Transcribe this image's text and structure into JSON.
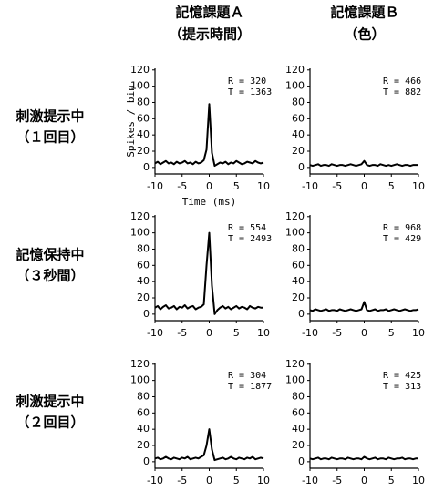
{
  "headers": [
    "記憶課題Ａ",
    "（提示時間）",
    "記憶課題Ｂ",
    "（色）"
  ],
  "row_labels": [
    [
      "刺激提示中",
      "（１回目）"
    ],
    [
      "記憶保持中",
      "（３秒間）"
    ],
    [
      "刺激提示中",
      "（２回目）"
    ]
  ],
  "chart_data": [
    {
      "type": "line",
      "y_label": "Spikes / bin",
      "x_label": "Time (ms)",
      "annotations": [
        "R = 320",
        "T = 1363"
      ],
      "xlim": [
        -10,
        10
      ],
      "ylim": [
        -8,
        122
      ],
      "xticks": [
        -10,
        -5,
        0,
        5,
        10
      ],
      "yticks": [
        0,
        20,
        40,
        60,
        80,
        100,
        120
      ],
      "color": "#000000",
      "x": [
        -10,
        -9.5,
        -9,
        -8.5,
        -8,
        -7.5,
        -7,
        -6.5,
        -6,
        -5.5,
        -5,
        -4.5,
        -4,
        -3.5,
        -3,
        -2.5,
        -2,
        -1.5,
        -1,
        -0.5,
        0,
        0.5,
        1,
        1.5,
        2,
        2.5,
        3,
        3.5,
        4,
        4.5,
        5,
        5.5,
        6,
        6.5,
        7,
        7.5,
        8,
        8.5,
        9,
        9.5,
        10
      ],
      "values": [
        5,
        7,
        4,
        6,
        8,
        5,
        6,
        4,
        7,
        5,
        6,
        8,
        5,
        6,
        4,
        7,
        5,
        6,
        9,
        22,
        78,
        18,
        2,
        4,
        6,
        5,
        7,
        4,
        6,
        5,
        8,
        6,
        4,
        5,
        7,
        6,
        5,
        8,
        6,
        5,
        6
      ]
    },
    {
      "type": "line",
      "annotations": [
        "R = 466",
        "T = 882"
      ],
      "xlim": [
        -10,
        10
      ],
      "ylim": [
        -8,
        122
      ],
      "xticks": [
        -10,
        -5,
        0,
        5,
        10
      ],
      "yticks": [
        0,
        20,
        40,
        60,
        80,
        100,
        120
      ],
      "color": "#000000",
      "x": [
        -10,
        -9.5,
        -9,
        -8.5,
        -8,
        -7.5,
        -7,
        -6.5,
        -6,
        -5.5,
        -5,
        -4.5,
        -4,
        -3.5,
        -3,
        -2.5,
        -2,
        -1.5,
        -1,
        -0.5,
        0,
        0.5,
        1,
        1.5,
        2,
        2.5,
        3,
        3.5,
        4,
        4.5,
        5,
        5.5,
        6,
        6.5,
        7,
        7.5,
        8,
        8.5,
        9,
        9.5,
        10
      ],
      "values": [
        3,
        2,
        3,
        4,
        2,
        3,
        3,
        2,
        4,
        3,
        2,
        3,
        3,
        2,
        3,
        4,
        3,
        2,
        3,
        4,
        8,
        3,
        2,
        3,
        3,
        2,
        4,
        3,
        2,
        3,
        2,
        3,
        4,
        3,
        2,
        3,
        3,
        2,
        3,
        3,
        3
      ]
    },
    {
      "type": "line",
      "annotations": [
        "R = 554",
        "T = 2493"
      ],
      "xlim": [
        -10,
        10
      ],
      "ylim": [
        -8,
        122
      ],
      "xticks": [
        -10,
        -5,
        0,
        5,
        10
      ],
      "yticks": [
        0,
        20,
        40,
        60,
        80,
        100,
        120
      ],
      "color": "#000000",
      "x": [
        -10,
        -9.5,
        -9,
        -8.5,
        -8,
        -7.5,
        -7,
        -6.5,
        -6,
        -5.5,
        -5,
        -4.5,
        -4,
        -3.5,
        -3,
        -2.5,
        -2,
        -1.5,
        -1,
        -0.5,
        0,
        0.5,
        1,
        1.5,
        2,
        2.5,
        3,
        3.5,
        4,
        4.5,
        5,
        5.5,
        6,
        6.5,
        7,
        7.5,
        8,
        8.5,
        9,
        9.5,
        10
      ],
      "values": [
        8,
        10,
        6,
        9,
        11,
        7,
        8,
        10,
        6,
        9,
        8,
        11,
        7,
        9,
        10,
        6,
        8,
        9,
        12,
        60,
        100,
        35,
        0,
        5,
        8,
        10,
        7,
        9,
        6,
        8,
        10,
        7,
        9,
        8,
        6,
        10,
        8,
        7,
        9,
        8,
        8
      ]
    },
    {
      "type": "line",
      "annotations": [
        "R = 968",
        "T = 429"
      ],
      "xlim": [
        -10,
        10
      ],
      "ylim": [
        -8,
        122
      ],
      "xticks": [
        -10,
        -5,
        0,
        5,
        10
      ],
      "yticks": [
        0,
        20,
        40,
        60,
        80,
        100,
        120
      ],
      "color": "#000000",
      "x": [
        -10,
        -9.5,
        -9,
        -8.5,
        -8,
        -7.5,
        -7,
        -6.5,
        -6,
        -5.5,
        -5,
        -4.5,
        -4,
        -3.5,
        -3,
        -2.5,
        -2,
        -1.5,
        -1,
        -0.5,
        0,
        0.5,
        1,
        1.5,
        2,
        2.5,
        3,
        3.5,
        4,
        4.5,
        5,
        5.5,
        6,
        6.5,
        7,
        7.5,
        8,
        8.5,
        9,
        9.5,
        10
      ],
      "values": [
        5,
        4,
        6,
        5,
        4,
        5,
        6,
        4,
        5,
        5,
        4,
        6,
        5,
        4,
        5,
        6,
        5,
        4,
        5,
        6,
        15,
        5,
        4,
        5,
        6,
        4,
        5,
        5,
        6,
        4,
        5,
        6,
        5,
        4,
        5,
        6,
        5,
        4,
        5,
        5,
        6
      ]
    },
    {
      "type": "line",
      "annotations": [
        "R = 304",
        "T = 1877"
      ],
      "xlim": [
        -10,
        10
      ],
      "ylim": [
        -8,
        122
      ],
      "xticks": [
        -10,
        -5,
        0,
        5,
        10
      ],
      "yticks": [
        0,
        20,
        40,
        60,
        80,
        100,
        120
      ],
      "color": "#000000",
      "x": [
        -10,
        -9.5,
        -9,
        -8.5,
        -8,
        -7.5,
        -7,
        -6.5,
        -6,
        -5.5,
        -5,
        -4.5,
        -4,
        -3.5,
        -3,
        -2.5,
        -2,
        -1.5,
        -1,
        -0.5,
        0,
        0.5,
        1,
        1.5,
        2,
        2.5,
        3,
        3.5,
        4,
        4.5,
        5,
        5.5,
        6,
        6.5,
        7,
        7.5,
        8,
        8.5,
        9,
        9.5,
        10
      ],
      "values": [
        4,
        5,
        3,
        4,
        6,
        4,
        3,
        5,
        4,
        3,
        5,
        4,
        6,
        3,
        4,
        5,
        4,
        6,
        8,
        20,
        40,
        15,
        2,
        3,
        4,
        5,
        3,
        4,
        6,
        4,
        3,
        5,
        4,
        3,
        5,
        4,
        6,
        3,
        4,
        5,
        4
      ]
    },
    {
      "type": "line",
      "annotations": [
        "R = 425",
        "T = 313"
      ],
      "xlim": [
        -10,
        10
      ],
      "ylim": [
        -8,
        122
      ],
      "xticks": [
        -10,
        -5,
        0,
        5,
        10
      ],
      "yticks": [
        0,
        20,
        40,
        60,
        80,
        100,
        120
      ],
      "color": "#000000",
      "x": [
        -10,
        -9.5,
        -9,
        -8.5,
        -8,
        -7.5,
        -7,
        -6.5,
        -6,
        -5.5,
        -5,
        -4.5,
        -4,
        -3.5,
        -3,
        -2.5,
        -2,
        -1.5,
        -1,
        -0.5,
        0,
        0.5,
        1,
        1.5,
        2,
        2.5,
        3,
        3.5,
        4,
        4.5,
        5,
        5.5,
        6,
        6.5,
        7,
        7.5,
        8,
        8.5,
        9,
        9.5,
        10
      ],
      "values": [
        4,
        3,
        4,
        5,
        3,
        4,
        4,
        3,
        5,
        4,
        3,
        4,
        4,
        3,
        5,
        4,
        3,
        4,
        4,
        3,
        6,
        4,
        3,
        4,
        5,
        3,
        4,
        4,
        3,
        5,
        4,
        3,
        4,
        4,
        5,
        3,
        4,
        4,
        3,
        4,
        4
      ]
    }
  ]
}
